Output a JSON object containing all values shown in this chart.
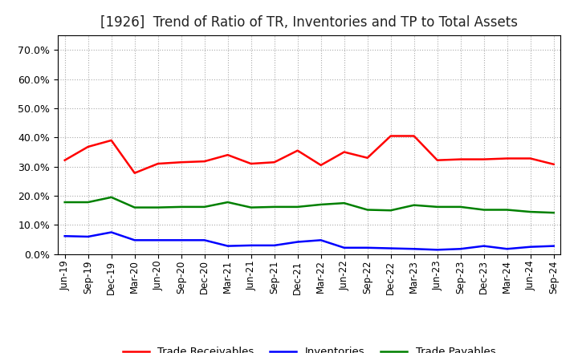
{
  "title": "[1926]  Trend of Ratio of TR, Inventories and TP to Total Assets",
  "x_labels": [
    "Jun-19",
    "Sep-19",
    "Dec-19",
    "Mar-20",
    "Jun-20",
    "Sep-20",
    "Dec-20",
    "Mar-21",
    "Jun-21",
    "Sep-21",
    "Dec-21",
    "Mar-22",
    "Jun-22",
    "Sep-22",
    "Dec-22",
    "Mar-23",
    "Jun-23",
    "Sep-23",
    "Dec-23",
    "Mar-24",
    "Jun-24",
    "Sep-24"
  ],
  "trade_receivables": [
    0.322,
    0.368,
    0.39,
    0.278,
    0.31,
    0.315,
    0.318,
    0.34,
    0.31,
    0.315,
    0.355,
    0.305,
    0.35,
    0.33,
    0.405,
    0.405,
    0.322,
    0.325,
    0.325,
    0.328,
    0.328,
    0.308
  ],
  "inventories": [
    0.062,
    0.06,
    0.075,
    0.048,
    0.048,
    0.048,
    0.048,
    0.028,
    0.03,
    0.03,
    0.042,
    0.048,
    0.022,
    0.022,
    0.02,
    0.018,
    0.015,
    0.018,
    0.028,
    0.018,
    0.025,
    0.028
  ],
  "trade_payables": [
    0.178,
    0.178,
    0.195,
    0.16,
    0.16,
    0.162,
    0.162,
    0.178,
    0.16,
    0.162,
    0.162,
    0.17,
    0.175,
    0.152,
    0.15,
    0.168,
    0.162,
    0.162,
    0.152,
    0.152,
    0.145,
    0.142
  ],
  "tr_color": "#FF0000",
  "inv_color": "#0000FF",
  "tp_color": "#008000",
  "ylim": [
    0.0,
    0.75
  ],
  "yticks": [
    0.0,
    0.1,
    0.2,
    0.3,
    0.4,
    0.5,
    0.6,
    0.7
  ],
  "grid_color": "#aaaaaa",
  "background_color": "#ffffff",
  "title_fontsize": 12,
  "legend_labels": [
    "Trade Receivables",
    "Inventories",
    "Trade Payables"
  ]
}
